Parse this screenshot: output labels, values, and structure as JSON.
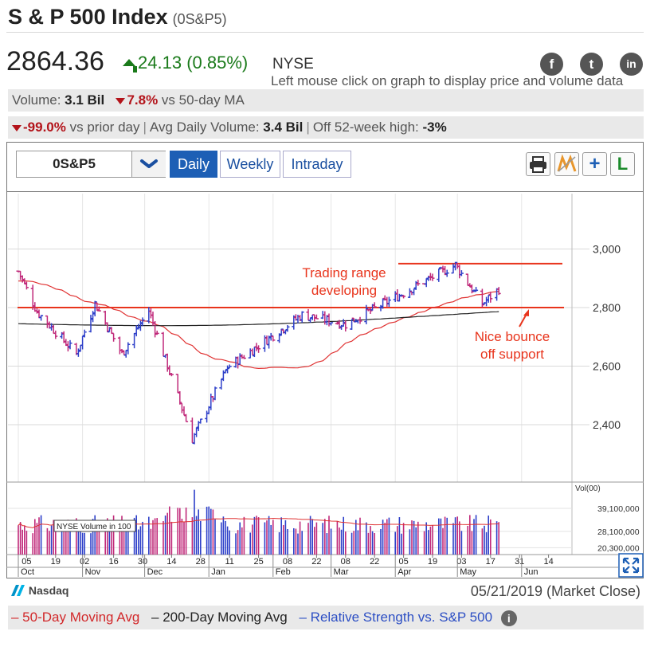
{
  "header": {
    "title": "S & P 500 Index",
    "symbol": "(0S&P5)",
    "price": "2864.36",
    "change": "24.13",
    "change_pct": "(0.85%)",
    "exchange": "NYSE",
    "hint": "Left mouse click on graph to display price and volume data"
  },
  "social": {
    "facebook": "f",
    "twitter": "t",
    "linkedin": "in"
  },
  "stats1": {
    "volume_label": "Volume:",
    "volume_value": "3.1 Bil",
    "ma_change": "7.8%",
    "ma_text": "vs 50-day MA"
  },
  "stats2": {
    "prior_change": "-99.0%",
    "prior_text": "vs prior day",
    "avg_label": "Avg Daily Volume:",
    "avg_value": "3.4 Bil",
    "off_label": "Off 52-week high:",
    "off_value": "-3%"
  },
  "toolbar": {
    "symbol": "0S&P5",
    "tabs": [
      "Daily",
      "Weekly",
      "Intraday"
    ],
    "active_tab": "Daily",
    "tools": [
      "printer-icon",
      "chart-style-icon",
      "add-icon",
      "l-icon"
    ],
    "tool_labels": {
      "add": "+",
      "l": "L"
    }
  },
  "footer": {
    "source": "Nasdaq",
    "date": "05/21/2019 (Market Close)",
    "legend_ma50": "– 50-Day Moving Avg",
    "legend_ma200": "– 200-Day Moving Avg",
    "legend_rs": "– Relative Strength vs. S&P 500",
    "info": "i"
  },
  "chart_data": {
    "type": "line",
    "colors": {
      "up": "#2d3fc9",
      "down": "#c0297a",
      "ma50": "#e03232",
      "ma200": "#222222",
      "annotation": "#e8341c"
    },
    "price_yticks": [
      2400,
      2600,
      2800,
      3000
    ],
    "price_ytick_labels": [
      "2,400",
      "2,600",
      "2,800",
      "3,000"
    ],
    "volume_label": "Vol(00)",
    "volume_yticks": [
      20300000,
      28100000,
      39100000
    ],
    "volume_ytick_labels": [
      "20,300,000",
      "28,100,000",
      "39,100,000"
    ],
    "volume_box": "NYSE Volume in 100",
    "x_day_labels": [
      "05",
      "19",
      "02",
      "16",
      "30",
      "14",
      "28",
      "11",
      "25",
      "08",
      "22",
      "08",
      "22",
      "05",
      "19",
      "03",
      "17",
      "31",
      "14"
    ],
    "x_month_labels": [
      "Oct",
      "Nov",
      "Dec",
      "Jan",
      "Feb",
      "Mar",
      "Apr",
      "May",
      "Jun"
    ],
    "annotations": {
      "range_text": [
        "Trading range",
        "developing"
      ],
      "bounce_text": [
        "Nice bounce",
        "off support"
      ],
      "resistance_level": 2950,
      "support_level": 2800
    },
    "key_closes": [
      {
        "date": "2018-10-01",
        "close": 2924
      },
      {
        "date": "2018-10-10",
        "close": 2786
      },
      {
        "date": "2018-10-29",
        "close": 2641
      },
      {
        "date": "2018-11-07",
        "close": 2814
      },
      {
        "date": "2018-11-20",
        "close": 2642
      },
      {
        "date": "2018-12-03",
        "close": 2790
      },
      {
        "date": "2018-12-24",
        "close": 2351
      },
      {
        "date": "2019-01-10",
        "close": 2596
      },
      {
        "date": "2019-02-15",
        "close": 2775
      },
      {
        "date": "2019-03-08",
        "close": 2743
      },
      {
        "date": "2019-04-30",
        "close": 2946
      },
      {
        "date": "2019-05-13",
        "close": 2812
      },
      {
        "date": "2019-05-21",
        "close": 2864
      }
    ],
    "ma50_range": [
      2620,
      2880
    ],
    "ma200_range": [
      2740,
      2780
    ]
  }
}
